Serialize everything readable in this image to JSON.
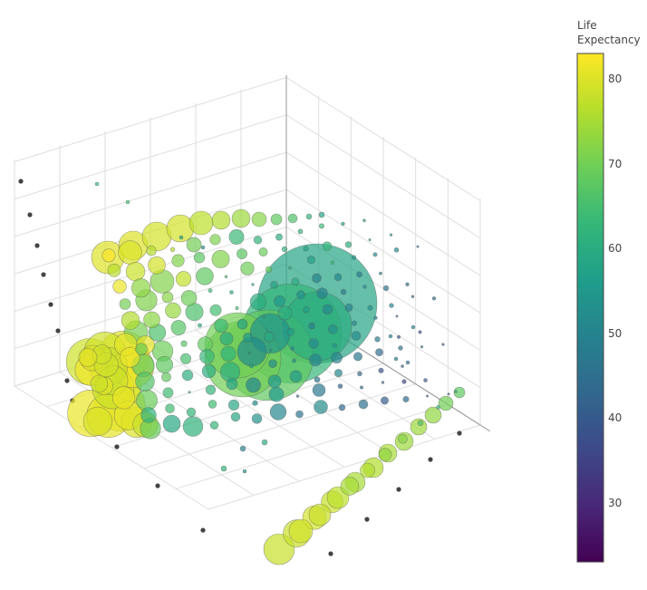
{
  "chart_data": {
    "type": "scatter3d",
    "title": "",
    "colorbar": {
      "title_line1": "Life",
      "title_line2": "Expectancy",
      "range": [
        23,
        83
      ],
      "ticks": [
        "80",
        "70",
        "60",
        "50",
        "40",
        "30"
      ],
      "tick_values": [
        80,
        70,
        60,
        50,
        40,
        30
      ],
      "colorscale": [
        "#440154",
        "#482878",
        "#3e4989",
        "#31688e",
        "#26828e",
        "#1f9e89",
        "#35b779",
        "#6ece58",
        "#b5de2b",
        "#fde725"
      ]
    },
    "axes": {
      "grid": true,
      "tick_labels_visible": false,
      "axis_titles_visible": false
    },
    "marker": {
      "size_by": "population",
      "opacity": 0.7,
      "line_color": "#555555"
    },
    "series": [
      {
        "name": "",
        "values": [
          {
            "i": 0,
            "j": 0,
            "k": 0,
            "size": 34,
            "life": 78
          },
          {
            "i": 1,
            "j": 0,
            "k": 0,
            "size": 30,
            "life": 78
          },
          {
            "i": 2,
            "j": 0,
            "k": 0,
            "size": 26,
            "life": 79
          },
          {
            "i": 3,
            "j": 0,
            "k": 0,
            "size": 24,
            "life": 78
          },
          {
            "i": 4,
            "j": 0,
            "k": 0,
            "size": 20,
            "life": 75
          },
          {
            "i": 5,
            "j": 0,
            "k": 0,
            "size": 16,
            "life": 76
          },
          {
            "i": 6,
            "j": 0,
            "k": 0,
            "size": 14,
            "life": 73
          },
          {
            "i": 7,
            "j": 0,
            "k": 0,
            "size": 10,
            "life": 72
          },
          {
            "i": 8,
            "j": 0,
            "k": 0,
            "size": 6,
            "life": 66
          },
          {
            "i": 9,
            "j": 0,
            "k": 0,
            "size": 4,
            "life": 62
          },
          {
            "i": 10,
            "j": 0,
            "k": 0,
            "size": 3,
            "life": 60
          }
        ]
      }
    ]
  }
}
